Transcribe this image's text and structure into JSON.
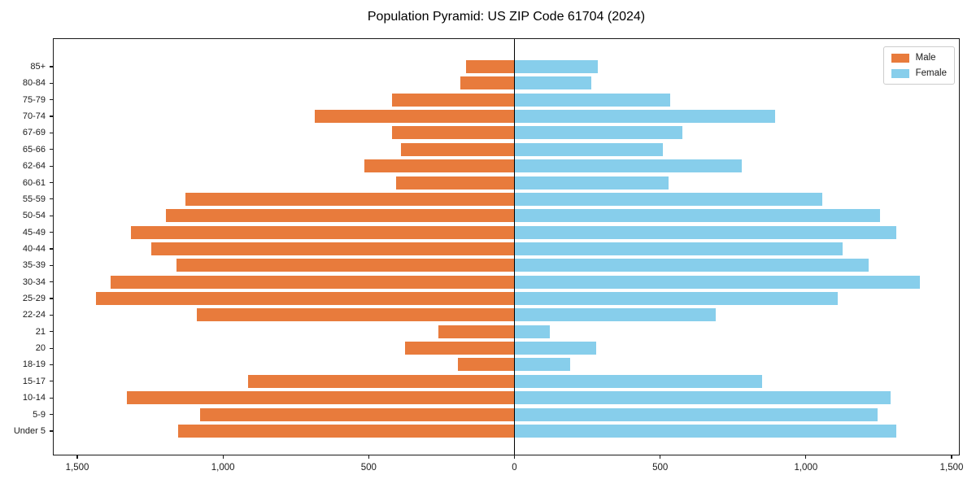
{
  "chart_data": {
    "type": "bar",
    "variant": "population-pyramid-diverging-horizontal",
    "title": "Population Pyramid: US ZIP Code 61704 (2024)",
    "categories_top_to_bottom": [
      "85+",
      "80-84",
      "75-79",
      "70-74",
      "67-69",
      "65-66",
      "62-64",
      "60-61",
      "55-59",
      "50-54",
      "45-49",
      "40-44",
      "35-39",
      "30-34",
      "25-29",
      "22-24",
      "21",
      "20",
      "18-19",
      "15-17",
      "10-14",
      "5-9",
      "Under 5"
    ],
    "series": [
      {
        "name": "Male",
        "side": "left",
        "color": "#e87b3c",
        "values": [
          165,
          185,
          420,
          685,
          420,
          390,
          515,
          405,
          1130,
          1195,
          1315,
          1245,
          1160,
          1385,
          1435,
          1090,
          260,
          375,
          195,
          915,
          1330,
          1080,
          1155
        ]
      },
      {
        "name": "Female",
        "side": "right",
        "color": "#87ceeb",
        "values": [
          285,
          265,
          535,
          895,
          575,
          510,
          780,
          530,
          1055,
          1255,
          1310,
          1125,
          1215,
          1390,
          1110,
          690,
          120,
          280,
          190,
          850,
          1290,
          1245,
          1310
        ]
      }
    ],
    "x_axis": {
      "ticks": [
        {
          "value": -1500,
          "label": "1,500"
        },
        {
          "value": -1000,
          "label": "1,000"
        },
        {
          "value": -500,
          "label": "500"
        },
        {
          "value": 0,
          "label": "0"
        },
        {
          "value": 500,
          "label": "500"
        },
        {
          "value": 1000,
          "label": "1,000"
        },
        {
          "value": 1500,
          "label": "1,500"
        }
      ],
      "xlim": [
        -1580,
        1535
      ]
    },
    "legend": {
      "position": "upper-right",
      "entries": [
        "Male",
        "Female"
      ]
    },
    "grid": false,
    "zero_line_color": "#000000",
    "background_color": "#ffffff"
  }
}
